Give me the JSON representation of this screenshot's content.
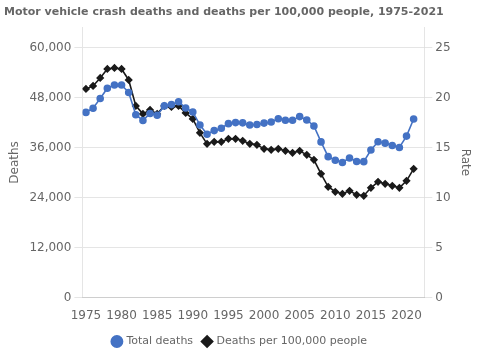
{
  "chart_data": {
    "type": "line",
    "title": "Motor vehicle crash deaths and deaths per 100,000 people, 1975-2021",
    "x": [
      1975,
      1976,
      1977,
      1978,
      1979,
      1980,
      1981,
      1982,
      1983,
      1984,
      1985,
      1986,
      1987,
      1988,
      1989,
      1990,
      1991,
      1992,
      1993,
      1994,
      1995,
      1996,
      1997,
      1998,
      1999,
      2000,
      2001,
      2002,
      2003,
      2004,
      2005,
      2006,
      2007,
      2008,
      2009,
      2010,
      2011,
      2012,
      2013,
      2014,
      2015,
      2016,
      2017,
      2018,
      2019,
      2020,
      2021
    ],
    "series": [
      {
        "name": "Total deaths",
        "color": "#4472C4",
        "marker": "circle",
        "values": [
          44525,
          45523,
          47878,
          50331,
          51093,
          51091,
          49301,
          43945,
          42589,
          44257,
          43825,
          46087,
          46390,
          47087,
          45582,
          44599,
          41508,
          39250,
          40150,
          40716,
          41817,
          42065,
          42013,
          41501,
          41611,
          41945,
          42196,
          43005,
          42643,
          42636,
          43510,
          42708,
          41259,
          37423,
          33883,
          32999,
          32479,
          33561,
          32719,
          32675,
          35485,
          37461,
          37133,
          36560,
          36096,
          38824,
          42939
        ]
      },
      {
        "name": "Deaths per 100,000 people",
        "color": "#1a1a1a",
        "marker": "diamond",
        "axis": "y2",
        "values": [
          20.9,
          21.2,
          22.0,
          22.9,
          23.0,
          22.9,
          21.8,
          19.2,
          18.4,
          18.8,
          18.4,
          19.2,
          19.1,
          19.2,
          18.5,
          17.9,
          16.5,
          15.4,
          15.6,
          15.6,
          15.9,
          15.9,
          15.7,
          15.4,
          15.3,
          14.9,
          14.8,
          14.9,
          14.7,
          14.5,
          14.7,
          14.3,
          13.8,
          12.4,
          11.1,
          10.6,
          10.4,
          10.7,
          10.3,
          10.2,
          11.0,
          11.6,
          11.4,
          11.2,
          11.0,
          11.7,
          12.9
        ]
      }
    ],
    "xlim": [
      1974.5,
      2022.5
    ],
    "xticks": [
      1975,
      1980,
      1985,
      1990,
      1995,
      2000,
      2005,
      2010,
      2015,
      2020
    ],
    "ylabel": "Deaths",
    "ylim": [
      0,
      65000
    ],
    "yticks": [
      0,
      {
        "value": 12000,
        "label": "12,000"
      },
      {
        "value": 24000,
        "label": "24,000"
      },
      {
        "value": 36000,
        "label": "36,000"
      },
      {
        "value": 48000,
        "label": "48,000"
      },
      {
        "value": 60000,
        "label": "60,000"
      }
    ],
    "y2label": "Rate",
    "y2lim": [
      0,
      27.083
    ],
    "y2ticks": [
      0,
      5,
      10,
      15,
      20,
      25
    ],
    "grid": true,
    "legend": "bottom"
  }
}
